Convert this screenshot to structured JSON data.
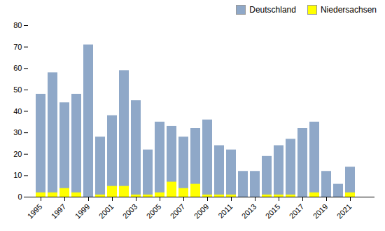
{
  "chart_data": {
    "type": "bar",
    "categories": [
      "1995",
      null,
      "1997",
      null,
      "1999",
      null,
      "2001",
      null,
      "2003",
      null,
      "2005",
      null,
      "2007",
      null,
      "2009",
      null,
      "2011",
      null,
      "2013",
      null,
      "2015",
      null,
      "2017",
      null,
      "2019",
      null,
      "2021",
      null
    ],
    "series": [
      {
        "name": "Deutschland",
        "color": "#8fa8c8",
        "values": [
          48,
          58,
          44,
          48,
          71,
          28,
          38,
          59,
          45,
          22,
          35,
          33,
          28,
          32,
          36,
          24,
          22,
          12,
          12,
          19,
          24,
          27,
          32,
          35,
          12,
          6,
          14,
          0
        ]
      },
      {
        "name": "Niedersachsen",
        "color": "#ffff00",
        "values": [
          2,
          2,
          4,
          2,
          0,
          1,
          5,
          5,
          1,
          1,
          2,
          7,
          4,
          6,
          1,
          1,
          1,
          0,
          0,
          1,
          1,
          1,
          0,
          2,
          0,
          0,
          2,
          0
        ]
      }
    ],
    "ylim": [
      0,
      80
    ],
    "yticks": [
      0,
      10,
      20,
      30,
      40,
      50,
      60,
      70,
      80
    ],
    "stacked": false,
    "grid": false,
    "legend": "upper right"
  }
}
